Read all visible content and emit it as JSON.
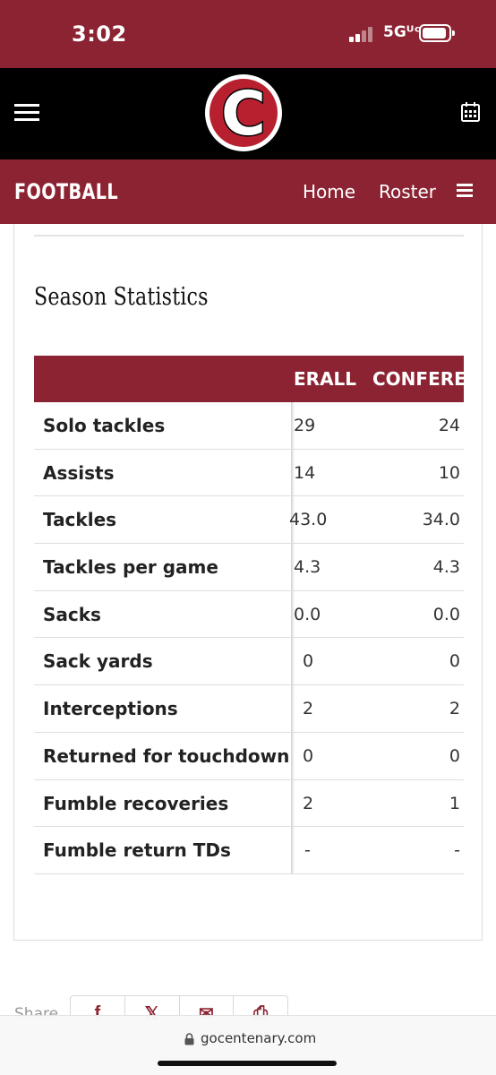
{
  "status_bar": {
    "time": "3:02",
    "network": "5Gᵁᶜ"
  },
  "header": {
    "logo_letter": "C",
    "menu_icon": "hamburger-icon",
    "calendar_icon": "calendar-icon"
  },
  "sport_nav": {
    "title": "FOOTBALL",
    "links": [
      "Home",
      "Roster"
    ],
    "menu_icon": "hamburger-icon"
  },
  "section": {
    "title": "Season Statistics"
  },
  "stats_table": {
    "columns": [
      "ERALL",
      "CONFERE"
    ],
    "rows": [
      {
        "label": "Solo tackles",
        "overall": "29",
        "conference": "24"
      },
      {
        "label": "Assists",
        "overall": "14",
        "conference": "10"
      },
      {
        "label": "Tackles",
        "overall": "43.0",
        "conference": "34.0"
      },
      {
        "label": "Tackles per game",
        "overall": "4.3",
        "conference": "4.3"
      },
      {
        "label": "Sacks",
        "overall": "0.0",
        "conference": "0.0"
      },
      {
        "label": "Sack yards",
        "overall": "0",
        "conference": "0"
      },
      {
        "label": "Interceptions",
        "overall": "2",
        "conference": "2"
      },
      {
        "label": "Returned for touchdown",
        "overall": "0",
        "conference": "0"
      },
      {
        "label": "Fumble recoveries",
        "overall": "2",
        "conference": "1"
      },
      {
        "label": "Fumble return TDs",
        "overall": "-",
        "conference": "-"
      }
    ]
  },
  "share": {
    "label": "Share",
    "buttons": [
      "f",
      "𝕏",
      "✉",
      "⎙"
    ]
  },
  "browser": {
    "url": "gocentenary.com"
  },
  "colors": {
    "brand": "#8c2332",
    "header_bg": "#000000"
  }
}
